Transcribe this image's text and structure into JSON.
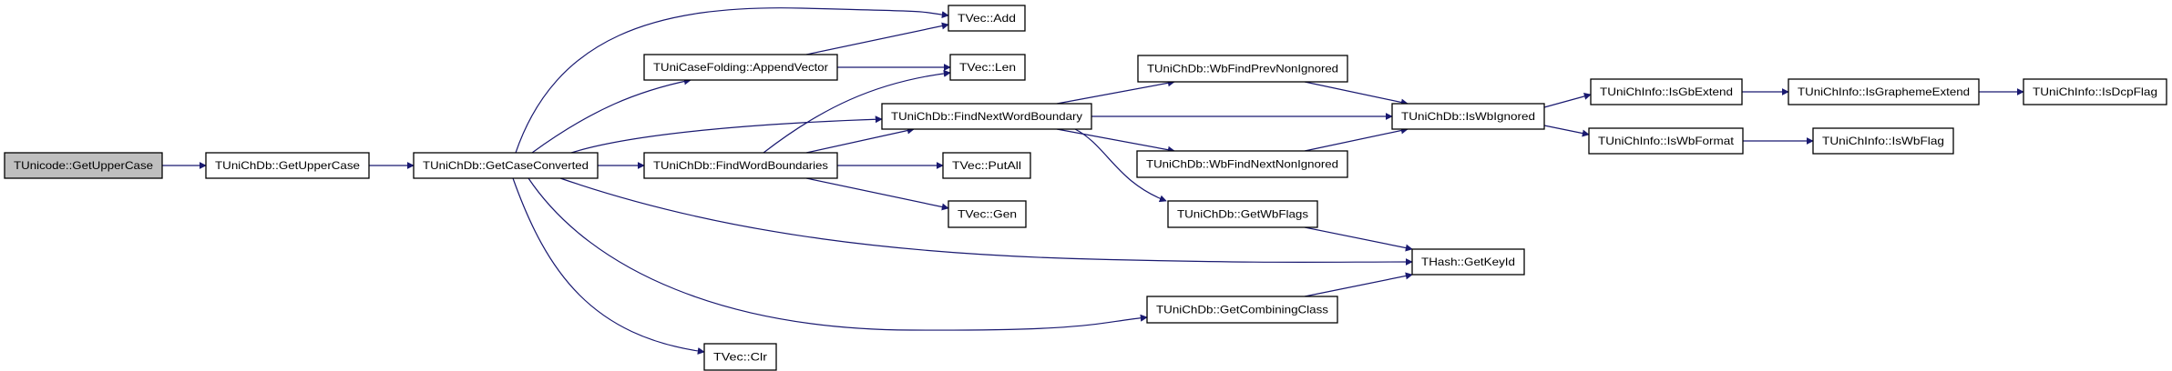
{
  "graph": {
    "edge_color": "#191970",
    "root_fill": "#bfbfbf",
    "nodes": [
      "TUnicode::GetUpperCase",
      "TUniChDb::GetUpperCase",
      "TUniChDb::GetCaseConverted",
      "TUniCaseFolding::AppendVector",
      "TUniChDb::FindWordBoundaries",
      "TVec::Add",
      "TVec::Len",
      "TUniChDb::FindNextWordBoundary",
      "TVec::PutAll",
      "TVec::Gen",
      "TVec::Clr",
      "TUniChDb::WbFindPrevNonIgnored",
      "TUniChDb::IsWbIgnored",
      "TUniChDb::WbFindNextNonIgnored",
      "TUniChDb::GetWbFlags",
      "THash::GetKeyId",
      "TUniChDb::GetCombiningClass",
      "TUniChInfo::IsGbExtend",
      "TUniChInfo::IsGraphemeExtend",
      "TUniChInfo::IsDcpFlag",
      "TUniChInfo::IsWbFormat",
      "TUniChInfo::IsWbFlag"
    ],
    "edges": [
      [
        "TUnicode::GetUpperCase",
        "TUniChDb::GetUpperCase"
      ],
      [
        "TUniChDb::GetUpperCase",
        "TUniChDb::GetCaseConverted"
      ],
      [
        "TUniChDb::GetCaseConverted",
        "TVec::Add"
      ],
      [
        "TUniChDb::GetCaseConverted",
        "TUniCaseFolding::AppendVector"
      ],
      [
        "TUniChDb::GetCaseConverted",
        "TUniChDb::FindNextWordBoundary"
      ],
      [
        "TUniChDb::GetCaseConverted",
        "TUniChDb::FindWordBoundaries"
      ],
      [
        "TUniChDb::GetCaseConverted",
        "THash::GetKeyId"
      ],
      [
        "TUniChDb::GetCaseConverted",
        "TUniChDb::GetCombiningClass"
      ],
      [
        "TUniChDb::GetCaseConverted",
        "TVec::Clr"
      ],
      [
        "TUniCaseFolding::AppendVector",
        "TVec::Add"
      ],
      [
        "TUniCaseFolding::AppendVector",
        "TVec::Len"
      ],
      [
        "TUniChDb::FindWordBoundaries",
        "TVec::Len"
      ],
      [
        "TUniChDb::FindWordBoundaries",
        "TUniChDb::FindNextWordBoundary"
      ],
      [
        "TUniChDb::FindWordBoundaries",
        "TVec::PutAll"
      ],
      [
        "TUniChDb::FindWordBoundaries",
        "TVec::Gen"
      ],
      [
        "TUniChDb::FindNextWordBoundary",
        "TUniChDb::WbFindPrevNonIgnored"
      ],
      [
        "TUniChDb::FindNextWordBoundary",
        "TUniChDb::IsWbIgnored"
      ],
      [
        "TUniChDb::FindNextWordBoundary",
        "TUniChDb::WbFindNextNonIgnored"
      ],
      [
        "TUniChDb::FindNextWordBoundary",
        "TUniChDb::GetWbFlags"
      ],
      [
        "TUniChDb::WbFindPrevNonIgnored",
        "TUniChDb::IsWbIgnored"
      ],
      [
        "TUniChDb::WbFindNextNonIgnored",
        "TUniChDb::IsWbIgnored"
      ],
      [
        "TUniChDb::GetWbFlags",
        "THash::GetKeyId"
      ],
      [
        "TUniChDb::GetCombiningClass",
        "THash::GetKeyId"
      ],
      [
        "TUniChDb::IsWbIgnored",
        "TUniChInfo::IsGbExtend"
      ],
      [
        "TUniChDb::IsWbIgnored",
        "TUniChInfo::IsWbFormat"
      ],
      [
        "TUniChInfo::IsGbExtend",
        "TUniChInfo::IsGraphemeExtend"
      ],
      [
        "TUniChInfo::IsGraphemeExtend",
        "TUniChInfo::IsDcpFlag"
      ],
      [
        "TUniChInfo::IsWbFormat",
        "TUniChInfo::IsWbFlag"
      ]
    ]
  }
}
